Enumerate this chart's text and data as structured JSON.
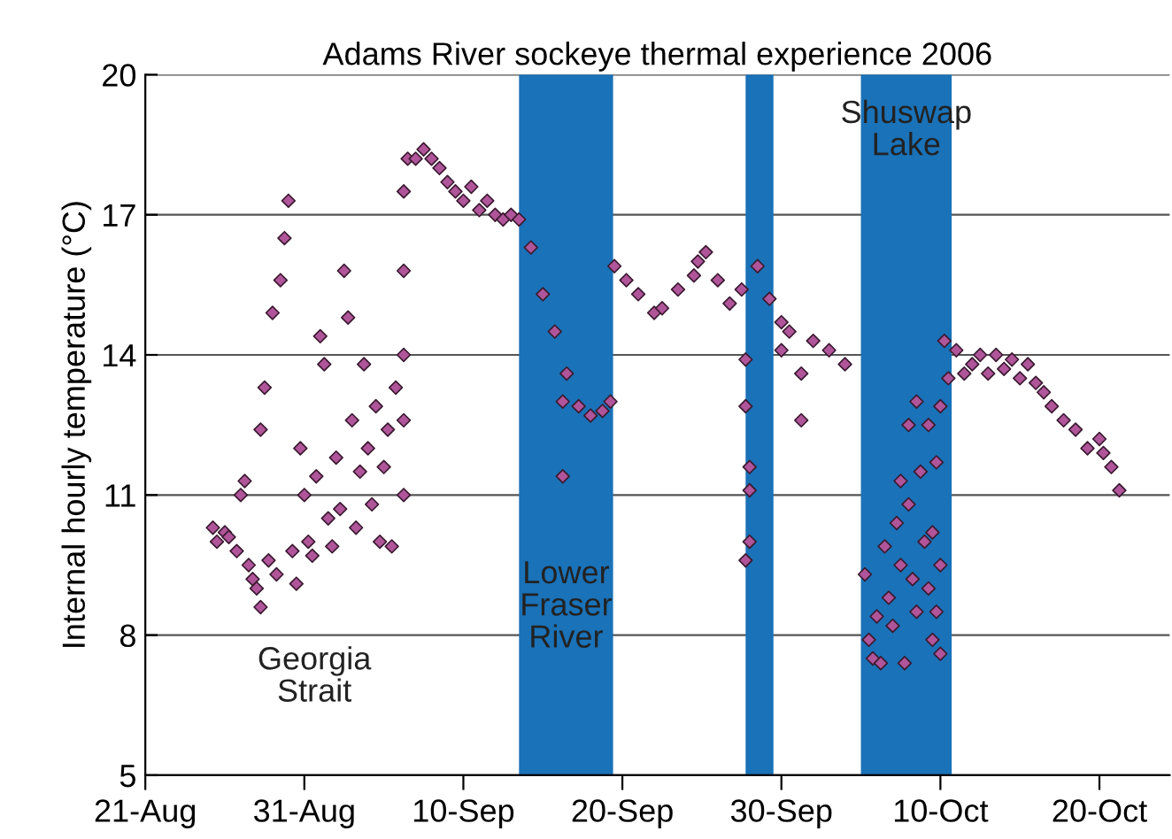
{
  "chart_data": {
    "type": "scatter",
    "title": "Adams River sockeye thermal experience 2006",
    "ylabel": "Internal hourly temperature (°C)",
    "x": [
      "2006-08-25T06:00",
      "2006-08-25T12:00",
      "2006-08-26T00:00",
      "2006-08-26T06:00",
      "2006-08-26T18:00",
      "2006-08-27T00:00",
      "2006-08-27T06:00",
      "2006-08-27T12:00",
      "2006-08-27T18:00",
      "2006-08-28T00:00",
      "2006-08-28T06:00",
      "2006-08-28T06:00",
      "2006-08-28T12:00",
      "2006-08-28T18:00",
      "2006-08-29T00:00",
      "2006-08-29T06:00",
      "2006-08-29T12:00",
      "2006-08-29T18:00",
      "2006-08-30T00:00",
      "2006-08-30T06:00",
      "2006-08-30T12:00",
      "2006-08-30T18:00",
      "2006-08-31T00:00",
      "2006-08-31T06:00",
      "2006-08-31T12:00",
      "2006-08-31T18:00",
      "2006-09-01T00:00",
      "2006-09-01T06:00",
      "2006-09-01T12:00",
      "2006-09-01T18:00",
      "2006-09-02T00:00",
      "2006-09-02T06:00",
      "2006-09-02T12:00",
      "2006-09-02T18:00",
      "2006-09-03T00:00",
      "2006-09-03T06:00",
      "2006-09-03T12:00",
      "2006-09-03T18:00",
      "2006-09-04T00:00",
      "2006-09-04T06:00",
      "2006-09-04T12:00",
      "2006-09-04T18:00",
      "2006-09-05T00:00",
      "2006-09-05T06:00",
      "2006-09-05T12:00",
      "2006-09-05T18:00",
      "2006-09-06T06:00",
      "2006-09-06T06:00",
      "2006-09-06T06:00",
      "2006-09-06T06:00",
      "2006-09-06T06:00",
      "2006-09-06T12:00",
      "2006-09-07T00:00",
      "2006-09-07T12:00",
      "2006-09-08T00:00",
      "2006-09-08T12:00",
      "2006-09-09T00:00",
      "2006-09-09T12:00",
      "2006-09-10T00:00",
      "2006-09-10T12:00",
      "2006-09-11T00:00",
      "2006-09-11T12:00",
      "2006-09-12T00:00",
      "2006-09-12T12:00",
      "2006-09-13T00:00",
      "2006-09-13T12:00",
      "2006-09-14T06:00",
      "2006-09-15T00:00",
      "2006-09-15T18:00",
      "2006-09-16T06:00",
      "2006-09-16T06:00",
      "2006-09-16T12:00",
      "2006-09-17T06:00",
      "2006-09-18T00:00",
      "2006-09-18T18:00",
      "2006-09-19T06:00",
      "2006-09-19T12:00",
      "2006-09-20T06:00",
      "2006-09-21T00:00",
      "2006-09-22T00:00",
      "2006-09-22T12:00",
      "2006-09-23T12:00",
      "2006-09-24T12:00",
      "2006-09-24T18:00",
      "2006-09-25T06:00",
      "2006-09-26T00:00",
      "2006-09-26T18:00",
      "2006-09-27T12:00",
      "2006-09-27T18:00",
      "2006-09-27T18:00",
      "2006-09-28T00:00",
      "2006-09-28T00:00",
      "2006-09-28T00:00",
      "2006-09-27T18:00",
      "2006-09-28T12:00",
      "2006-09-29T06:00",
      "2006-09-30T00:00",
      "2006-09-30T00:00",
      "2006-09-30T12:00",
      "2006-10-01T06:00",
      "2006-10-01T06:00",
      "2006-10-02T00:00",
      "2006-10-03T00:00",
      "2006-10-04T00:00",
      "2006-10-05T06:00",
      "2006-10-05T12:00",
      "2006-10-05T18:00",
      "2006-10-06T00:00",
      "2006-10-06T06:00",
      "2006-10-06T12:00",
      "2006-10-06T18:00",
      "2006-10-07T00:00",
      "2006-10-07T06:00",
      "2006-10-07T12:00",
      "2006-10-07T12:00",
      "2006-10-07T18:00",
      "2006-10-08T00:00",
      "2006-10-08T00:00",
      "2006-10-08T06:00",
      "2006-10-08T12:00",
      "2006-10-08T12:00",
      "2006-10-08T18:00",
      "2006-10-09T00:00",
      "2006-10-09T06:00",
      "2006-10-09T06:00",
      "2006-10-09T12:00",
      "2006-10-09T12:00",
      "2006-10-09T18:00",
      "2006-10-09T18:00",
      "2006-10-10T00:00",
      "2006-10-10T00:00",
      "2006-10-10T00:00",
      "2006-10-10T06:00",
      "2006-10-10T12:00",
      "2006-10-11T00:00",
      "2006-10-11T12:00",
      "2006-10-12T00:00",
      "2006-10-12T12:00",
      "2006-10-13T00:00",
      "2006-10-13T12:00",
      "2006-10-14T00:00",
      "2006-10-14T12:00",
      "2006-10-15T00:00",
      "2006-10-15T12:00",
      "2006-10-16T00:00",
      "2006-10-16T12:00",
      "2006-10-17T00:00",
      "2006-10-17T18:00",
      "2006-10-18T12:00",
      "2006-10-19T06:00",
      "2006-10-20T00:00",
      "2006-10-20T06:00",
      "2006-10-20T18:00",
      "2006-10-21T06:00"
    ],
    "series": [
      {
        "color": "#b0559a",
        "values": [
          10.3,
          10.0,
          10.2,
          10.1,
          9.8,
          11.0,
          11.3,
          9.5,
          9.2,
          9.0,
          8.6,
          12.4,
          13.3,
          9.6,
          14.9,
          9.3,
          15.6,
          16.5,
          17.3,
          9.8,
          9.1,
          12.0,
          11.0,
          10.0,
          9.7,
          11.4,
          14.4,
          13.8,
          10.5,
          9.9,
          11.8,
          10.7,
          15.8,
          14.8,
          12.6,
          10.3,
          11.5,
          13.8,
          12.0,
          10.8,
          12.9,
          10.0,
          11.6,
          12.4,
          9.9,
          13.3,
          11.0,
          12.6,
          14.0,
          15.8,
          17.5,
          18.2,
          18.2,
          18.4,
          18.2,
          18.0,
          17.7,
          17.5,
          17.3,
          17.6,
          17.1,
          17.3,
          17.0,
          16.9,
          17.0,
          16.9,
          16.3,
          15.3,
          14.5,
          13.0,
          11.4,
          13.6,
          12.9,
          12.7,
          12.8,
          13.0,
          15.9,
          15.6,
          15.3,
          14.9,
          15.0,
          15.4,
          15.7,
          16.0,
          16.2,
          15.6,
          15.1,
          15.4,
          13.9,
          12.9,
          11.6,
          11.1,
          10.0,
          9.6,
          15.9,
          15.2,
          14.7,
          14.1,
          14.5,
          12.6,
          13.6,
          14.3,
          14.1,
          13.8,
          9.3,
          7.9,
          7.5,
          8.4,
          7.4,
          9.9,
          8.8,
          8.2,
          10.4,
          11.3,
          9.5,
          7.4,
          10.8,
          12.5,
          9.2,
          13.0,
          8.5,
          11.5,
          10.0,
          9.0,
          12.5,
          10.2,
          7.9,
          11.7,
          8.5,
          9.5,
          7.6,
          12.9,
          14.3,
          13.5,
          14.1,
          13.6,
          13.8,
          14.0,
          13.6,
          14.0,
          13.7,
          13.9,
          13.5,
          13.8,
          13.4,
          13.2,
          12.9,
          12.6,
          12.4,
          12.0,
          12.2,
          11.9,
          11.6,
          11.1
        ]
      }
    ],
    "marker": "diamond",
    "grid": "y",
    "xlim": [
      "2006-08-21",
      "2006-10-24T10:00"
    ],
    "xticks": [
      {
        "value": "2006-08-21",
        "label": "21-Aug"
      },
      {
        "value": "2006-08-31",
        "label": "31-Aug"
      },
      {
        "value": "2006-09-10",
        "label": "10-Sep"
      },
      {
        "value": "2006-09-20",
        "label": "20-Sep"
      },
      {
        "value": "2006-09-30",
        "label": "30-Sep"
      },
      {
        "value": "2006-10-10",
        "label": "10-Oct"
      },
      {
        "value": "2006-10-20",
        "label": "20-Oct"
      }
    ],
    "ylim": [
      5,
      20
    ],
    "yticks": [
      5,
      8,
      11,
      14,
      17,
      20
    ],
    "bands": [
      {
        "axis": "x",
        "from": "2006-09-13T12:00",
        "to": "2006-09-19T10:00",
        "color": "#1a72b8",
        "label": "Lower\nFraser\nRiver"
      },
      {
        "axis": "x",
        "from": "2006-09-27T18:00",
        "to": "2006-09-29T12:00",
        "color": "#1a72b8"
      },
      {
        "axis": "x",
        "from": "2006-10-05T00:00",
        "to": "2006-10-10T17:00",
        "color": "#1a72b8",
        "label": "Shuswap\nLake"
      }
    ],
    "annotations": [
      "Georgia\nStrait"
    ]
  }
}
